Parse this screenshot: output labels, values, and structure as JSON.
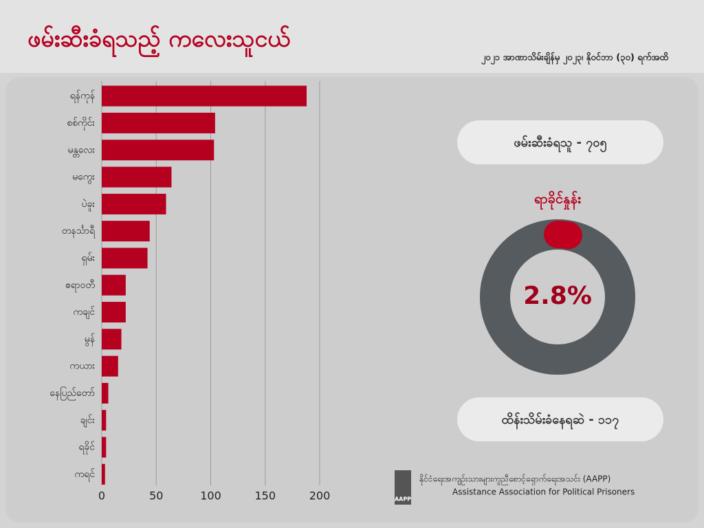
{
  "header": {
    "title": "ဖမ်းဆီးခံရသည့် ကလေးသူငယ်",
    "subtitle": "၂၀၂၁ အာဏာသိမ်းချိန်မှ ၂၀၂၃၊ နိုဝင်ဘာ (၃၀) ရက်အထိ"
  },
  "chart_data": [
    {
      "type": "bar",
      "orientation": "horizontal",
      "categories": [
        "ရန်ကုန်",
        "စစ်ကိုင်း",
        "မန္တလေး",
        "မကွေး",
        "ပဲခူး",
        "တနင်္သာရီ",
        "ရှမ်း",
        "ဧရာဝတီ",
        "ကချင်",
        "မွန်",
        "ကယား",
        "နေပြည်တော်",
        "ချင်း",
        "ရခိုင်",
        "ကရင်"
      ],
      "values": [
        188,
        104,
        103,
        64,
        59,
        44,
        42,
        22,
        22,
        18,
        15,
        6,
        4,
        4,
        3
      ],
      "color": "#b5001f",
      "xlim": [
        0,
        200
      ],
      "xticks": [
        0,
        50,
        100,
        150,
        200
      ],
      "grid": true
    },
    {
      "type": "donut",
      "title": "ရာခိုင်နှုန်း",
      "values": [
        2.8
      ],
      "value_labels": [
        "2.8%"
      ],
      "color": "#c0001f",
      "track_color": "#555b5e"
    }
  ],
  "stats": [
    "ဖမ်းဆီးခံရသူ - ၇၀၅",
    "ထိန်းသိမ်းခံနေရဆဲ - ၁၁၇"
  ],
  "footer": {
    "logo": "AAPP",
    "org_mm": "နိုင်ငံရေးအကျဉ်းသားများကူညီစောင့်ရှောက်ရေးအသင်း (AAPP)",
    "org_en": "Assistance Association for Political Prisoners"
  }
}
